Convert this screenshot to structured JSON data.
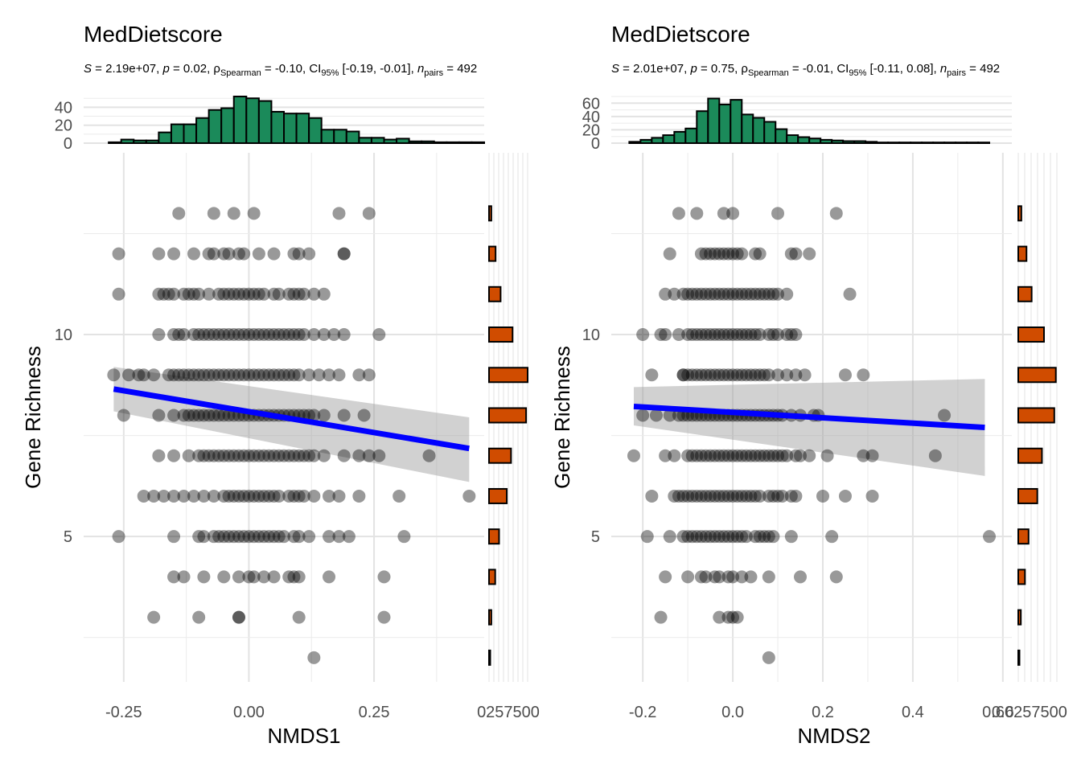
{
  "chart_data": [
    {
      "type": "scatter",
      "title": "MedDietscore",
      "subtitle": {
        "s_label": "S",
        "s_value": " = 2.19e+07, ",
        "p_label": "p",
        "p_value": " = 0.02, ",
        "rho_symbol": "ρ",
        "rho_sub": "Spearman",
        "rho_value": " = -0.10, CI",
        "ci_sub": "95%",
        "ci_value": " [-0.19, -0.01], ",
        "n_label": "n",
        "n_sub": "pairs",
        "n_value": " = 492"
      },
      "xlabel": "NMDS1",
      "ylabel": "Gene Richness",
      "xlim": [
        -0.33,
        0.47
      ],
      "ylim": [
        1.4,
        14.5
      ],
      "x_ticks": [
        -0.25,
        0.0,
        0.25
      ],
      "x_tick_labels": [
        "-0.25",
        "0.00",
        "0.25"
      ],
      "y_ticks": [
        5,
        10
      ],
      "y_tick_labels": [
        "5",
        "10"
      ],
      "points": [
        {
          "y": 13,
          "x": [
            -0.14,
            -0.07,
            -0.03,
            0.01,
            0.18,
            0.24
          ]
        },
        {
          "y": 12,
          "x": [
            -0.26,
            -0.18,
            -0.15,
            -0.11,
            -0.08,
            -0.05,
            -0.07,
            -0.04,
            -0.02,
            -0.01,
            0.02,
            0.05,
            0.09,
            0.1,
            0.12,
            0.19,
            0.19
          ]
        },
        {
          "y": 11,
          "x": [
            -0.26,
            -0.18,
            -0.17,
            -0.16,
            -0.15,
            -0.13,
            -0.12,
            -0.11,
            -0.1,
            -0.08,
            -0.06,
            -0.05,
            -0.04,
            -0.03,
            -0.02,
            -0.01,
            0.0,
            0.01,
            0.02,
            0.03,
            0.05,
            0.06,
            0.08,
            0.09,
            0.1,
            0.11,
            0.13,
            0.15
          ]
        },
        {
          "y": 10,
          "x": [
            -0.18,
            -0.15,
            -0.14,
            -0.13,
            -0.11,
            -0.1,
            -0.09,
            -0.08,
            -0.07,
            -0.06,
            -0.05,
            -0.04,
            -0.03,
            -0.02,
            -0.01,
            0.0,
            0.01,
            0.02,
            0.03,
            0.04,
            0.05,
            0.06,
            0.07,
            0.08,
            0.09,
            0.1,
            0.11,
            0.13,
            0.15,
            0.17,
            0.19,
            0.26
          ]
        },
        {
          "y": 9,
          "x": [
            -0.27,
            -0.24,
            -0.22,
            -0.21,
            -0.19,
            -0.16,
            -0.15,
            -0.14,
            -0.13,
            -0.12,
            -0.11,
            -0.1,
            -0.09,
            -0.08,
            -0.07,
            -0.06,
            -0.05,
            -0.04,
            -0.03,
            -0.02,
            -0.01,
            0.0,
            0.01,
            0.02,
            0.03,
            0.04,
            0.05,
            0.06,
            0.07,
            0.08,
            0.09,
            0.1,
            0.12,
            0.14,
            0.16,
            0.18,
            0.22,
            0.24
          ]
        },
        {
          "y": 8,
          "x": [
            -0.25,
            -0.18,
            -0.15,
            -0.13,
            -0.12,
            -0.11,
            -0.1,
            -0.09,
            -0.08,
            -0.07,
            -0.06,
            -0.05,
            -0.04,
            -0.03,
            -0.02,
            -0.01,
            0.0,
            0.01,
            0.02,
            0.03,
            0.04,
            0.05,
            0.06,
            0.07,
            0.08,
            0.09,
            0.1,
            0.11,
            0.12,
            0.13,
            0.15,
            0.19,
            0.23
          ]
        },
        {
          "y": 7,
          "x": [
            -0.18,
            -0.15,
            -0.12,
            -0.1,
            -0.09,
            -0.08,
            -0.07,
            -0.06,
            -0.05,
            -0.04,
            -0.03,
            -0.02,
            -0.01,
            0.0,
            0.01,
            0.02,
            0.03,
            0.04,
            0.05,
            0.06,
            0.07,
            0.08,
            0.09,
            0.1,
            0.11,
            0.12,
            0.13,
            0.15,
            0.19,
            0.22,
            0.24,
            0.26,
            0.36
          ]
        },
        {
          "y": 6,
          "x": [
            -0.21,
            -0.19,
            -0.17,
            -0.15,
            -0.13,
            -0.11,
            -0.09,
            -0.07,
            -0.05,
            -0.04,
            -0.03,
            -0.02,
            -0.01,
            0.0,
            0.01,
            0.02,
            0.03,
            0.04,
            0.05,
            0.06,
            0.08,
            0.09,
            0.1,
            0.11,
            0.13,
            0.16,
            0.18,
            0.22,
            0.3,
            0.44
          ]
        },
        {
          "y": 5,
          "x": [
            -0.26,
            -0.15,
            -0.1,
            -0.09,
            -0.07,
            -0.06,
            -0.05,
            -0.04,
            -0.03,
            -0.02,
            -0.01,
            0.0,
            0.01,
            0.02,
            0.03,
            0.04,
            0.05,
            0.06,
            0.07,
            0.09,
            0.1,
            0.12,
            0.16,
            0.18,
            0.2,
            0.31
          ]
        },
        {
          "y": 4,
          "x": [
            -0.15,
            -0.13,
            -0.09,
            -0.05,
            -0.02,
            0.0,
            0.01,
            0.03,
            0.05,
            0.08,
            0.09,
            0.1,
            0.16,
            0.27
          ]
        },
        {
          "y": 3,
          "x": [
            -0.19,
            -0.1,
            -0.02,
            -0.02,
            0.1,
            0.27
          ]
        },
        {
          "y": 2,
          "x": [
            0.13
          ]
        }
      ],
      "trend": {
        "x": [
          -0.27,
          0.44
        ],
        "y": [
          8.65,
          7.18
        ],
        "ci_lower": [
          8.1,
          6.35
        ],
        "ci_upper": [
          9.2,
          7.95
        ],
        "color": "#0000ff"
      },
      "top_hist": {
        "bins_x": [
          -0.28,
          -0.255,
          -0.23,
          -0.205,
          -0.18,
          -0.155,
          -0.13,
          -0.105,
          -0.08,
          -0.055,
          -0.03,
          -0.005,
          0.02,
          0.045,
          0.07,
          0.095,
          0.12,
          0.145,
          0.17,
          0.195,
          0.22,
          0.245,
          0.27,
          0.295,
          0.32,
          0.345,
          0.37,
          0.395,
          0.42,
          0.445
        ],
        "counts": [
          1,
          4,
          3,
          3,
          12,
          21,
          21,
          28,
          37,
          39,
          52,
          50,
          47,
          35,
          33,
          33,
          28,
          15,
          15,
          13,
          6,
          6,
          4,
          5,
          2,
          2,
          1,
          1,
          1,
          1
        ],
        "ylim": [
          0,
          52
        ],
        "y_ticks": [
          0,
          20,
          40
        ],
        "y_tick_labels": [
          "0",
          "20",
          "40"
        ],
        "fill": "#1b8a5a"
      },
      "right_hist": {
        "levels": [
          13,
          12,
          11,
          10,
          9,
          8,
          7,
          6,
          5,
          4,
          3,
          2
        ],
        "counts": [
          6,
          17,
          30,
          61,
          100,
          96,
          57,
          46,
          26,
          16,
          6,
          1
        ],
        "xlim": [
          0,
          100
        ],
        "x_ticks": [
          0,
          25,
          50,
          75,
          100
        ],
        "tick_label_text": "0257500",
        "fill": "#d04c00"
      }
    },
    {
      "type": "scatter",
      "title": "MedDietscore",
      "subtitle": {
        "s_label": "S",
        "s_value": " = 2.01e+07, ",
        "p_label": "p",
        "p_value": " = 0.75, ",
        "rho_symbol": "ρ",
        "rho_sub": "Spearman",
        "rho_value": " = -0.01, CI",
        "ci_sub": "95%",
        "ci_value": " [-0.11, 0.08], ",
        "n_label": "n",
        "n_sub": "pairs",
        "n_value": " = 492"
      },
      "xlabel": "NMDS2",
      "ylabel": "Gene Richness",
      "xlim": [
        -0.27,
        0.62
      ],
      "ylim": [
        1.4,
        14.5
      ],
      "x_ticks": [
        -0.2,
        0.0,
        0.2,
        0.4,
        0.6
      ],
      "x_tick_labels": [
        "-0.2",
        "0.0",
        "0.2",
        "0.4",
        "0.6"
      ],
      "y_ticks": [
        5,
        10
      ],
      "y_tick_labels": [
        "5",
        "10"
      ],
      "points": [
        {
          "y": 13,
          "x": [
            -0.12,
            -0.08,
            -0.02,
            0.0,
            0.1,
            0.23
          ]
        },
        {
          "y": 12,
          "x": [
            -0.14,
            -0.07,
            -0.06,
            -0.05,
            -0.04,
            -0.03,
            -0.02,
            -0.01,
            0.0,
            0.01,
            0.02,
            0.05,
            0.06,
            0.13,
            0.14,
            0.17
          ]
        },
        {
          "y": 11,
          "x": [
            -0.15,
            -0.13,
            -0.11,
            -0.1,
            -0.09,
            -0.08,
            -0.07,
            -0.06,
            -0.05,
            -0.04,
            -0.03,
            -0.02,
            -0.01,
            0.0,
            0.01,
            0.02,
            0.03,
            0.04,
            0.05,
            0.06,
            0.07,
            0.08,
            0.09,
            0.1,
            0.12,
            0.26
          ]
        },
        {
          "y": 10,
          "x": [
            -0.2,
            -0.16,
            -0.15,
            -0.12,
            -0.1,
            -0.09,
            -0.08,
            -0.07,
            -0.06,
            -0.05,
            -0.04,
            -0.03,
            -0.02,
            -0.01,
            0.0,
            0.01,
            0.02,
            0.03,
            0.04,
            0.05,
            0.06,
            0.08,
            0.09,
            0.1,
            0.12,
            0.13,
            0.14
          ]
        },
        {
          "y": 9,
          "x": [
            -0.18,
            -0.11,
            -0.11,
            -0.1,
            -0.09,
            -0.08,
            -0.07,
            -0.06,
            -0.05,
            -0.04,
            -0.03,
            -0.02,
            -0.01,
            0.0,
            0.01,
            0.02,
            0.03,
            0.04,
            0.05,
            0.06,
            0.07,
            0.08,
            0.1,
            0.12,
            0.14,
            0.16,
            0.25,
            0.29
          ]
        },
        {
          "y": 8,
          "x": [
            -0.2,
            -0.17,
            -0.14,
            -0.12,
            -0.11,
            -0.1,
            -0.09,
            -0.08,
            -0.07,
            -0.06,
            -0.05,
            -0.04,
            -0.03,
            -0.02,
            -0.01,
            0.0,
            0.01,
            0.02,
            0.03,
            0.04,
            0.05,
            0.06,
            0.07,
            0.08,
            0.09,
            0.1,
            0.11,
            0.13,
            0.15,
            0.18,
            0.19,
            0.47
          ]
        },
        {
          "y": 7,
          "x": [
            -0.22,
            -0.15,
            -0.13,
            -0.1,
            -0.09,
            -0.08,
            -0.07,
            -0.06,
            -0.05,
            -0.04,
            -0.03,
            -0.02,
            -0.01,
            0.0,
            0.01,
            0.02,
            0.03,
            0.04,
            0.05,
            0.06,
            0.07,
            0.08,
            0.09,
            0.1,
            0.11,
            0.12,
            0.14,
            0.15,
            0.17,
            0.21,
            0.29,
            0.31,
            0.45
          ]
        },
        {
          "y": 6,
          "x": [
            -0.18,
            -0.13,
            -0.12,
            -0.11,
            -0.1,
            -0.09,
            -0.08,
            -0.07,
            -0.06,
            -0.05,
            -0.04,
            -0.03,
            -0.02,
            -0.01,
            0.0,
            0.01,
            0.02,
            0.03,
            0.04,
            0.05,
            0.06,
            0.08,
            0.09,
            0.1,
            0.11,
            0.13,
            0.14,
            0.2,
            0.25,
            0.31
          ]
        },
        {
          "y": 5,
          "x": [
            -0.19,
            -0.14,
            -0.11,
            -0.1,
            -0.09,
            -0.08,
            -0.07,
            -0.06,
            -0.05,
            -0.04,
            -0.03,
            -0.02,
            -0.01,
            0.0,
            0.01,
            0.02,
            0.03,
            0.05,
            0.06,
            0.07,
            0.08,
            0.09,
            0.13,
            0.22,
            0.57
          ]
        },
        {
          "y": 4,
          "x": [
            -0.15,
            -0.1,
            -0.07,
            -0.06,
            -0.04,
            -0.03,
            -0.01,
            0.0,
            0.02,
            0.04,
            0.08,
            0.15,
            0.23
          ]
        },
        {
          "y": 3,
          "x": [
            -0.16,
            -0.03,
            -0.01,
            0.0,
            0.01
          ]
        },
        {
          "y": 2,
          "x": [
            0.08
          ]
        }
      ],
      "trend": {
        "x": [
          -0.22,
          0.56
        ],
        "y": [
          8.22,
          7.7
        ],
        "ci_lower": [
          7.75,
          6.5
        ],
        "ci_upper": [
          8.7,
          8.9
        ],
        "color": "#0000ff"
      },
      "top_hist": {
        "bins_x": [
          -0.23,
          -0.205,
          -0.18,
          -0.155,
          -0.13,
          -0.105,
          -0.08,
          -0.055,
          -0.03,
          -0.005,
          0.02,
          0.045,
          0.07,
          0.095,
          0.12,
          0.145,
          0.17,
          0.195,
          0.22,
          0.245,
          0.27,
          0.295,
          0.32,
          0.345,
          0.37,
          0.395,
          0.42,
          0.445,
          0.47,
          0.495,
          0.52,
          0.545
        ],
        "counts": [
          2,
          5,
          8,
          12,
          17,
          22,
          48,
          67,
          58,
          65,
          43,
          38,
          32,
          21,
          12,
          9,
          7,
          5,
          4,
          3,
          3,
          2,
          1,
          1,
          1,
          1,
          1,
          1,
          1,
          1,
          1,
          1
        ],
        "ylim": [
          0,
          70
        ],
        "y_ticks": [
          0,
          20,
          40,
          60
        ],
        "y_tick_labels": [
          "0",
          "20",
          "40",
          "60"
        ],
        "fill": "#1b8a5a"
      },
      "right_hist": {
        "levels": [
          13,
          12,
          11,
          10,
          9,
          8,
          7,
          6,
          5,
          4,
          3,
          2
        ],
        "counts": [
          6,
          16,
          26,
          50,
          73,
          70,
          46,
          37,
          20,
          13,
          5,
          1
        ],
        "xlim": [
          0,
          75
        ],
        "x_ticks": [
          0,
          25,
          50,
          75
        ],
        "tick_label_text": "0.60257500",
        "fill": "#d04c00"
      }
    }
  ]
}
